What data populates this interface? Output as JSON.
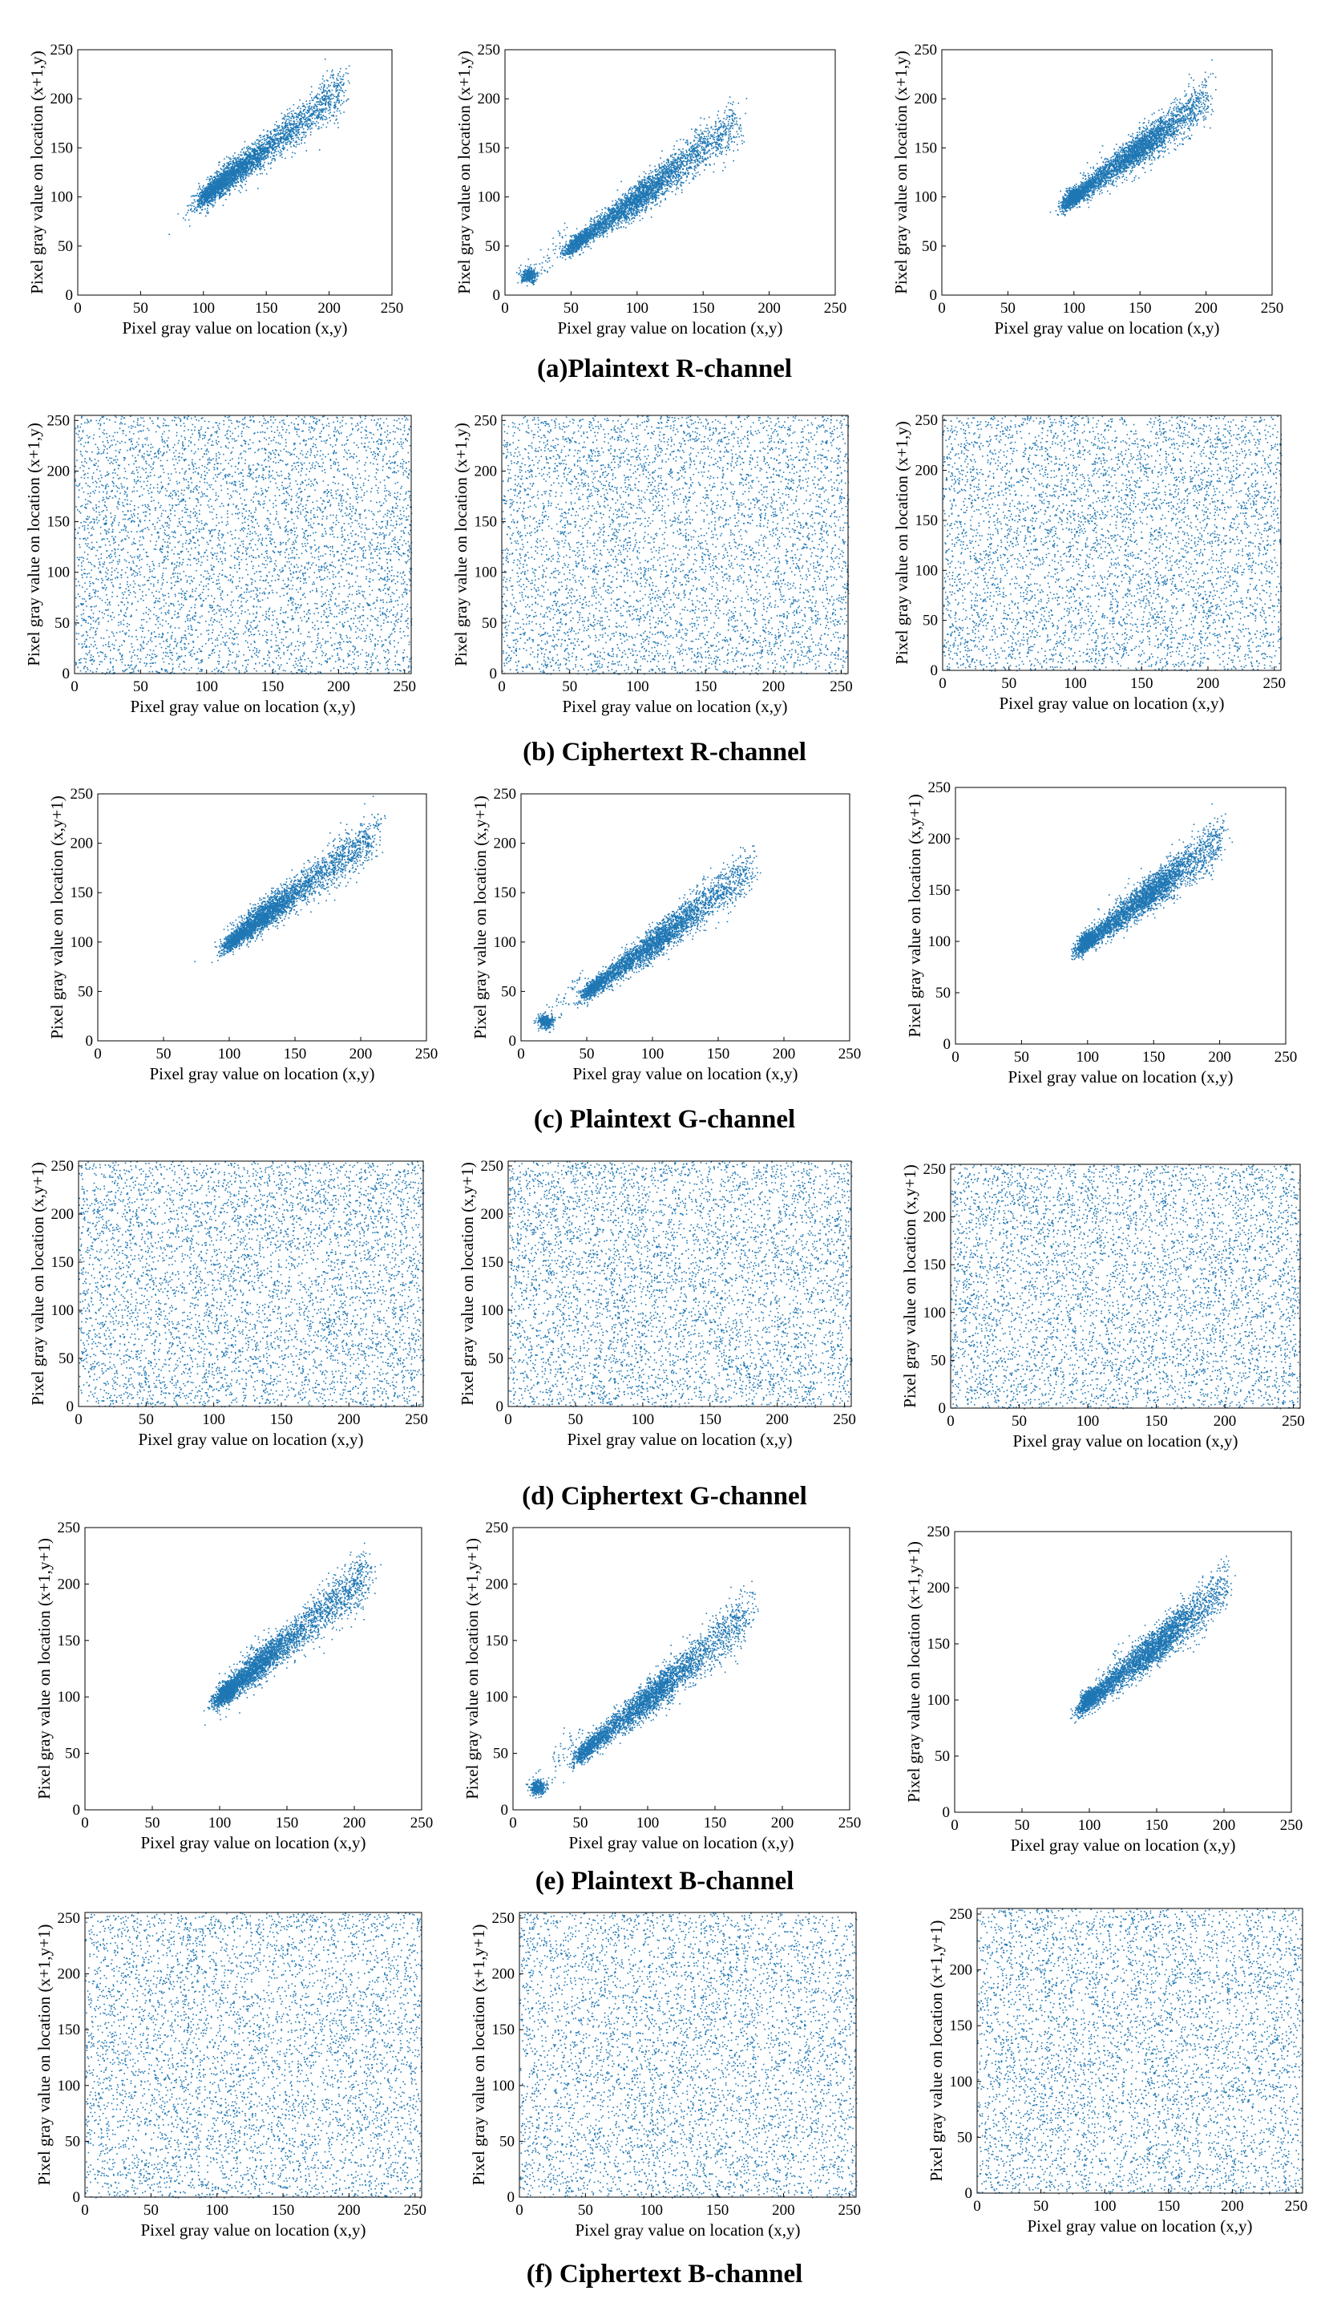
{
  "figure": {
    "point_color": "#1f77b4",
    "axis_color": "#000000"
  },
  "captions": {
    "r_plain": "(a)Plaintext R-channel",
    "r_cipher": "(b) Ciphertext R-channel",
    "g_plain": "(c)   Plaintext G-channel",
    "g_cipher": "(d) Ciphertext G-channel",
    "b_plain": "(e)  Plaintext B-channel",
    "b_cipher": "(f) Ciphertext B-channel"
  },
  "chart_data": [
    {
      "id": "r-plain-1",
      "type": "scatter",
      "row": "(a)Plaintext R-channel",
      "xlabel": "Pixel gray value on location (x,y)",
      "ylabel": "Pixel gray value on location (x+1,y)",
      "xlim": [
        0,
        250
      ],
      "ylim": [
        0,
        250
      ],
      "xticks": [
        0,
        50,
        100,
        150,
        200,
        250
      ],
      "yticks": [
        0,
        50,
        100,
        150,
        200,
        250
      ],
      "distribution": "correlated",
      "cluster_center": [
        120,
        122
      ],
      "cluster_range_x": [
        100,
        210
      ],
      "trend": "diagonal y=x",
      "outlier_clump": null
    },
    {
      "id": "r-plain-2",
      "type": "scatter",
      "row": "(a)Plaintext R-channel",
      "xlabel": "Pixel gray value on location (x,y)",
      "ylabel": "Pixel gray value on location (x+1,y)",
      "xlim": [
        0,
        250
      ],
      "ylim": [
        0,
        250
      ],
      "xticks": [
        0,
        50,
        100,
        150,
        200,
        250
      ],
      "yticks": [
        0,
        50,
        100,
        150,
        200,
        250
      ],
      "distribution": "correlated",
      "cluster_center": [
        105,
        103
      ],
      "cluster_range_x": [
        50,
        175
      ],
      "trend": "diagonal y=x",
      "outlier_clump": [
        18,
        20
      ]
    },
    {
      "id": "r-plain-3",
      "type": "scatter",
      "row": "(a)Plaintext R-channel",
      "xlabel": "Pixel gray value on location (x,y)",
      "ylabel": "Pixel gray value on location (x+1,y)",
      "xlim": [
        0,
        250
      ],
      "ylim": [
        0,
        250
      ],
      "xticks": [
        0,
        50,
        100,
        150,
        200,
        250
      ],
      "yticks": [
        0,
        50,
        100,
        150,
        200,
        250
      ],
      "distribution": "correlated",
      "cluster_center": [
        150,
        150
      ],
      "cluster_range_x": [
        95,
        200
      ],
      "trend": "diagonal y=x",
      "outlier_clump": [
        100,
        103
      ]
    },
    {
      "id": "r-cipher-1",
      "type": "scatter",
      "row": "(b) Ciphertext R-channel",
      "xlabel": "Pixel gray value on location (x,y)",
      "ylabel": "Pixel gray value on location (x+1,y)",
      "xlim": [
        0,
        255
      ],
      "ylim": [
        0,
        255
      ],
      "xticks": [
        0,
        50,
        100,
        150,
        200,
        250
      ],
      "yticks": [
        0,
        50,
        100,
        150,
        200,
        250
      ],
      "distribution": "uniform",
      "cluster_range_x": [
        0,
        255
      ]
    },
    {
      "id": "r-cipher-2",
      "type": "scatter",
      "row": "(b) Ciphertext R-channel",
      "xlabel": "Pixel gray value on location (x,y)",
      "ylabel": "Pixel gray value on location (x+1,y)",
      "xlim": [
        0,
        255
      ],
      "ylim": [
        0,
        255
      ],
      "xticks": [
        0,
        50,
        100,
        150,
        200,
        250
      ],
      "yticks": [
        0,
        50,
        100,
        150,
        200,
        250
      ],
      "distribution": "uniform",
      "cluster_range_x": [
        0,
        255
      ]
    },
    {
      "id": "r-cipher-3",
      "type": "scatter",
      "row": "(b) Ciphertext R-channel",
      "xlabel": "Pixel gray value on location (x,y)",
      "ylabel": "Pixel gray value on location (x+1,y)",
      "xlim": [
        0,
        255
      ],
      "ylim": [
        0,
        255
      ],
      "xticks": [
        0,
        50,
        100,
        150,
        200,
        250
      ],
      "yticks": [
        0,
        50,
        100,
        150,
        200,
        250
      ],
      "distribution": "uniform",
      "cluster_range_x": [
        0,
        255
      ]
    },
    {
      "id": "g-plain-1",
      "type": "scatter",
      "row": "(c)   Plaintext G-channel",
      "xlabel": "Pixel gray value on location (x,y)",
      "ylabel": "Pixel gray value on location (x,y+1)",
      "xlim": [
        0,
        250
      ],
      "ylim": [
        0,
        250
      ],
      "xticks": [
        0,
        50,
        100,
        150,
        200,
        250
      ],
      "yticks": [
        0,
        50,
        100,
        150,
        200,
        250
      ],
      "distribution": "correlated",
      "cluster_center": [
        125,
        127
      ],
      "cluster_range_x": [
        100,
        210
      ],
      "trend": "diagonal y=x",
      "outlier_clump": null
    },
    {
      "id": "g-plain-2",
      "type": "scatter",
      "row": "(c)   Plaintext G-channel",
      "xlabel": "Pixel gray value on location (x,y)",
      "ylabel": "Pixel gray value on location (x,y+1)",
      "xlim": [
        0,
        250
      ],
      "ylim": [
        0,
        250
      ],
      "xticks": [
        0,
        50,
        100,
        150,
        200,
        250
      ],
      "yticks": [
        0,
        50,
        100,
        150,
        200,
        250
      ],
      "distribution": "correlated",
      "cluster_center": [
        105,
        103
      ],
      "cluster_range_x": [
        50,
        175
      ],
      "trend": "diagonal y=x",
      "outlier_clump": [
        18,
        20
      ]
    },
    {
      "id": "g-plain-3",
      "type": "scatter",
      "row": "(c)   Plaintext G-channel",
      "xlabel": "Pixel gray value on location  (x,y)",
      "ylabel": "Pixel gray value on location  (x,y+1)",
      "xlim": [
        0,
        250
      ],
      "ylim": [
        0,
        250
      ],
      "xticks": [
        0,
        50,
        100,
        150,
        200,
        250
      ],
      "yticks": [
        0,
        50,
        100,
        150,
        200,
        250
      ],
      "distribution": "correlated",
      "cluster_center": [
        150,
        150
      ],
      "cluster_range_x": [
        95,
        200
      ],
      "trend": "diagonal y=x",
      "outlier_clump": [
        100,
        103
      ]
    },
    {
      "id": "g-cipher-1",
      "type": "scatter",
      "row": "(d) Ciphertext G-channel",
      "xlabel": "Pixel gray value on location (x,y)",
      "ylabel": "Pixel gray value on location (x,y+1)",
      "xlim": [
        0,
        255
      ],
      "ylim": [
        0,
        255
      ],
      "xticks": [
        0,
        50,
        100,
        150,
        200,
        250
      ],
      "yticks": [
        0,
        50,
        100,
        150,
        200,
        250
      ],
      "distribution": "uniform",
      "cluster_range_x": [
        0,
        255
      ]
    },
    {
      "id": "g-cipher-2",
      "type": "scatter",
      "row": "(d) Ciphertext G-channel",
      "xlabel": "Pixel gray value on location (x,y)",
      "ylabel": "Pixel gray value on location (x,y+1)",
      "xlim": [
        0,
        255
      ],
      "ylim": [
        0,
        255
      ],
      "xticks": [
        0,
        50,
        100,
        150,
        200,
        250
      ],
      "yticks": [
        0,
        50,
        100,
        150,
        200,
        250
      ],
      "distribution": "uniform",
      "cluster_range_x": [
        0,
        255
      ]
    },
    {
      "id": "g-cipher-3",
      "type": "scatter",
      "row": "(d) Ciphertext G-channel",
      "xlabel": "Pixel gray value on location (x,y)",
      "ylabel": "Pixel gray value on location (x,y+1)",
      "xlim": [
        0,
        255
      ],
      "ylim": [
        0,
        255
      ],
      "xticks": [
        0,
        50,
        100,
        150,
        200,
        250
      ],
      "yticks": [
        0,
        50,
        100,
        150,
        200,
        250
      ],
      "distribution": "uniform",
      "cluster_range_x": [
        0,
        255
      ]
    },
    {
      "id": "b-plain-1",
      "type": "scatter",
      "row": "(e)  Plaintext B-channel",
      "xlabel": "Pixel gray value on location (x,y)",
      "ylabel": "Pixel gray value on location (x+1,y+1)",
      "xlim": [
        0,
        250
      ],
      "ylim": [
        0,
        250
      ],
      "xticks": [
        0,
        50,
        100,
        150,
        200,
        250
      ],
      "yticks": [
        0,
        50,
        100,
        150,
        200,
        250
      ],
      "distribution": "correlated",
      "cluster_center": [
        125,
        125
      ],
      "cluster_range_x": [
        100,
        210
      ],
      "trend": "diagonal y=x",
      "outlier_clump": [
        105,
        105
      ]
    },
    {
      "id": "b-plain-2",
      "type": "scatter",
      "row": "(e)  Plaintext B-channel",
      "xlabel": "Pixel gray value on location (x,y)",
      "ylabel": "Pixel gray value on location (x+1,y+1)",
      "xlim": [
        0,
        250
      ],
      "ylim": [
        0,
        250
      ],
      "xticks": [
        0,
        50,
        100,
        150,
        200,
        250
      ],
      "yticks": [
        0,
        50,
        100,
        150,
        200,
        250
      ],
      "distribution": "correlated",
      "cluster_center": [
        105,
        103
      ],
      "cluster_range_x": [
        50,
        175
      ],
      "trend": "diagonal y=x",
      "outlier_clump": [
        18,
        20
      ]
    },
    {
      "id": "b-plain-3",
      "type": "scatter",
      "row": "(e)  Plaintext B-channel",
      "xlabel": "Pixel gray value on location (x,y)",
      "ylabel": "Pixel gray value on location (x+1,y+1)",
      "xlim": [
        0,
        250
      ],
      "ylim": [
        0,
        250
      ],
      "xticks": [
        0,
        50,
        100,
        150,
        200,
        250
      ],
      "yticks": [
        0,
        50,
        100,
        150,
        200,
        250
      ],
      "distribution": "correlated",
      "cluster_center": [
        150,
        150
      ],
      "cluster_range_x": [
        95,
        200
      ],
      "trend": "diagonal y=x",
      "outlier_clump": [
        100,
        103
      ]
    },
    {
      "id": "b-cipher-1",
      "type": "scatter",
      "row": "(f) Ciphertext B-channel",
      "xlabel": "Pixel gray value on location (x,y)",
      "ylabel": "Pixel gray value on location (x+1,y+1)",
      "xlim": [
        0,
        255
      ],
      "ylim": [
        0,
        255
      ],
      "xticks": [
        0,
        50,
        100,
        150,
        200,
        250
      ],
      "yticks": [
        0,
        50,
        100,
        150,
        200,
        250
      ],
      "distribution": "uniform",
      "cluster_range_x": [
        0,
        255
      ]
    },
    {
      "id": "b-cipher-2",
      "type": "scatter",
      "row": "(f) Ciphertext B-channel",
      "xlabel": "Pixel gray value on location (x,y)",
      "ylabel": "Pixel gray value on location (x+1,y+1)",
      "xlim": [
        0,
        255
      ],
      "ylim": [
        0,
        255
      ],
      "xticks": [
        0,
        50,
        100,
        150,
        200,
        250
      ],
      "yticks": [
        0,
        50,
        100,
        150,
        200,
        250
      ],
      "distribution": "uniform",
      "cluster_range_x": [
        0,
        255
      ]
    },
    {
      "id": "b-cipher-3",
      "type": "scatter",
      "row": "(f) Ciphertext B-channel",
      "xlabel": "Pixel gray value on location (x,y)",
      "ylabel": "Pixel gray value on location (x+1,y+1)",
      "xlim": [
        0,
        255
      ],
      "ylim": [
        0,
        255
      ],
      "xticks": [
        0,
        50,
        100,
        150,
        200,
        250
      ],
      "yticks": [
        0,
        50,
        100,
        150,
        200,
        250
      ],
      "distribution": "uniform",
      "cluster_range_x": [
        0,
        255
      ]
    }
  ]
}
